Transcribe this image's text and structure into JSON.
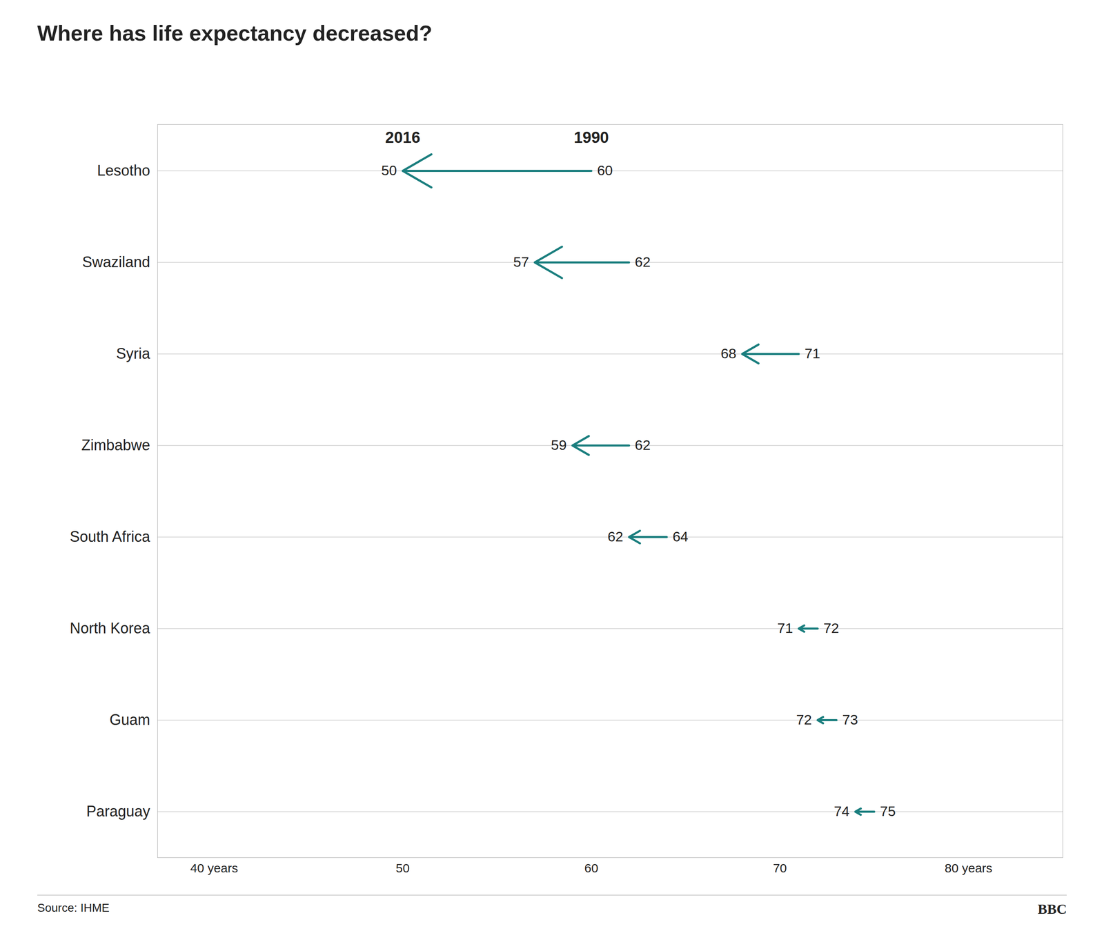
{
  "chart_data": {
    "type": "arrow",
    "title": "Where has life expectancy decreased?",
    "orientation": "horizontal",
    "categories": [
      "Lesotho",
      "Swaziland",
      "Syria",
      "Zimbabwe",
      "South Africa",
      "North Korea",
      "Guam",
      "Paraguay"
    ],
    "series": [
      {
        "name": "1990",
        "values": [
          60,
          62,
          71,
          62,
          64,
          72,
          73,
          75
        ]
      },
      {
        "name": "2016",
        "values": [
          50,
          57,
          68,
          59,
          62,
          71,
          72,
          74
        ]
      }
    ],
    "color": "#1a7e7e",
    "xlim": [
      37,
      85
    ],
    "xticks": [
      {
        "value": 40,
        "label": "40 years"
      },
      50,
      60,
      70,
      {
        "value": 80,
        "label": "80 years"
      }
    ],
    "grid": true,
    "data_labels": true,
    "annotations": [
      "Source: IHME",
      "BBC"
    ]
  }
}
